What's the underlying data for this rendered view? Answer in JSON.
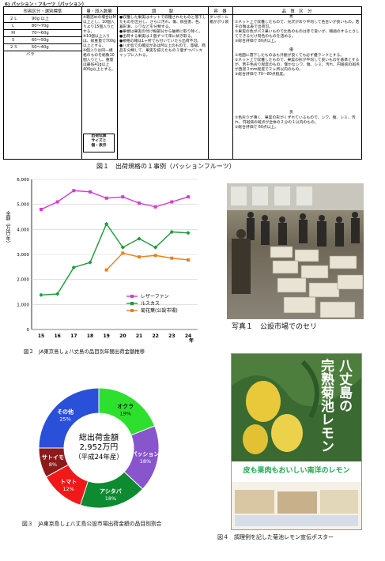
{
  "spec": {
    "title": "6) パッション・フルーツ（パッション）",
    "headers": {
      "size": "形容区分・選別標準",
      "qty": "量・段入数量",
      "prep": "調　　　製",
      "container": "容　器",
      "quality": "品　質　区　分"
    },
    "sizes": [
      {
        "grade": "２Ｌ",
        "weight": "90g 以上"
      },
      {
        "grade": "Ｌ",
        "weight": "80〜70g"
      },
      {
        "grade": "Ｍ",
        "weight": "70〜60g"
      },
      {
        "grade": "Ｓ",
        "weight": "60〜50g"
      },
      {
        "grade": "２Ｓ",
        "weight": "50〜40g"
      }
    ],
    "bara_label": "バラ",
    "qty_text": "※箱詰めの場合はM以上とし、10個入りより15個入りとする。\n※10個以上入りは、総重量で700g以上とする。\n※個入りは同一規格のものを総数10個入りとし、重量は最低41g以上400g以上とする。",
    "ship_box_label": "出荷伝票\nサイズと\n個・表示",
    "prep_text": "●収穫した果実はネットで収穫されたものと落下したものを区分し、さらに汚れ、傷、病虫害、色、着形漸、シワなどを分類する。\n●果梗は果実の付け根部分から破断に取り除く。\n●出荷する果実は１個ずつて単に拭き取る。\n●規格の箱は1ヶ所でも付いていたら出荷不可。\n●八丈島での確認があはM以上のもので、等級、商品を分類して、果実を揃えたもの１個ずつパンキャップに入れる。",
    "container_text": "ダンボール箱がポリ袋",
    "quality": {
      "grade_shu": "秀",
      "shu_text": "①ネット上で収穫したもので、光沢があり平均して色合いが良いもの。若干の傷は表で出荷可。\n②果実の色がパス果いもので比色のものは赤で良いが、韓語のするとさしてできるだけ同色のものを詰める。\n③総合評価で 80点以上。",
      "grade_yu": "優",
      "yu_text": "①地面に落下したものはも外観が良くても必ず優ランクとする。\n②ネット上で収穫したもので、果実の形が平均して良いものを基準とするが、若干色劣り程度のもの、僅かなシワ、傷、シミ、汚れ、円斑病の斑点が直径３mm程度で２ヶ所以内のもの。\n③総合評価で 70〜80点程度。",
      "grade_ryo": "良",
      "ryo_text": "①色劣りが薄く、果実の形がくずれているもので、シワ、傷、シミ、汚れ、円斑病の斑点が全体の２分の１以内のもの。\n②総合評価で 60点以上。"
    }
  },
  "fig1_caption": "図１　出荷規格の１事例（パッションフルーツ）",
  "chart_data": [
    {
      "type": "line",
      "title": "",
      "xlabel": "",
      "x_unit": "年",
      "ylabel": "金額（万円/年）",
      "x": [
        15,
        16,
        17,
        18,
        19,
        20,
        21,
        22,
        23,
        24
      ],
      "xtick_labels": [
        "15",
        "16",
        "17",
        "18",
        "19",
        "20",
        "21",
        "22",
        "23",
        "24"
      ],
      "ylim": [
        0,
        6000
      ],
      "yticks": [
        0,
        1000,
        2000,
        3000,
        4000,
        5000,
        6000
      ],
      "ytick_labels": [
        "0",
        "1,000",
        "2,000",
        "3,000",
        "4,000",
        "5,000",
        "6,000"
      ],
      "legend_position": "bottom-right",
      "series": [
        {
          "name": "レザーファン",
          "color": "#d63bd0",
          "marker": "square",
          "values": [
            4800,
            5100,
            5550,
            5500,
            5250,
            5300,
            5050,
            4900,
            5100,
            5300
          ]
        },
        {
          "name": "ルスカス",
          "color": "#1c9a3a",
          "marker": "diamond",
          "values": [
            1380,
            1420,
            2480,
            2680,
            4220,
            3280,
            3630,
            3280,
            3900,
            3860
          ]
        },
        {
          "name": "菊花葉(公設市場)",
          "color": "#ee7f18",
          "marker": "square",
          "values": [
            null,
            null,
            null,
            null,
            2380,
            3050,
            2900,
            2960,
            2850,
            2780
          ]
        }
      ]
    },
    {
      "type": "pie",
      "title": "",
      "center_text": [
        "総出荷金額",
        "2,952万円",
        "（平成24年産）"
      ],
      "legend_position": "none",
      "slices": [
        {
          "label": "オクラ",
          "value": 19,
          "color": "#2ee02e"
        },
        {
          "label": "パッション",
          "value": 18,
          "color": "#8855cc"
        },
        {
          "label": "アシタバ",
          "value": 18,
          "color": "#0e8a30"
        },
        {
          "label": "トマト",
          "value": 12,
          "color": "#f01818"
        },
        {
          "label": "サトイモ",
          "value": 8,
          "color": "#8b1a1a"
        },
        {
          "label": "その他",
          "value": 25,
          "color": "#2a4fd8"
        }
      ]
    }
  ],
  "fig2_caption": "図２　JA東京島しょ八丈島の品目別年間出荷金額推移",
  "fig3_caption": "図３　JA東京島しょ八丈島公設市場出荷金額の品目別割合",
  "photo1_caption": "写真１　公設市場でのセリ",
  "fig4_caption": "図４　調理例を記した菊池レモン宣伝ポスター",
  "poster": {
    "title_v1": "八丈島の",
    "title_v2": "完熟菊池レモン",
    "subtitle": "皮も果肉もおいしい南洋のレモン"
  }
}
